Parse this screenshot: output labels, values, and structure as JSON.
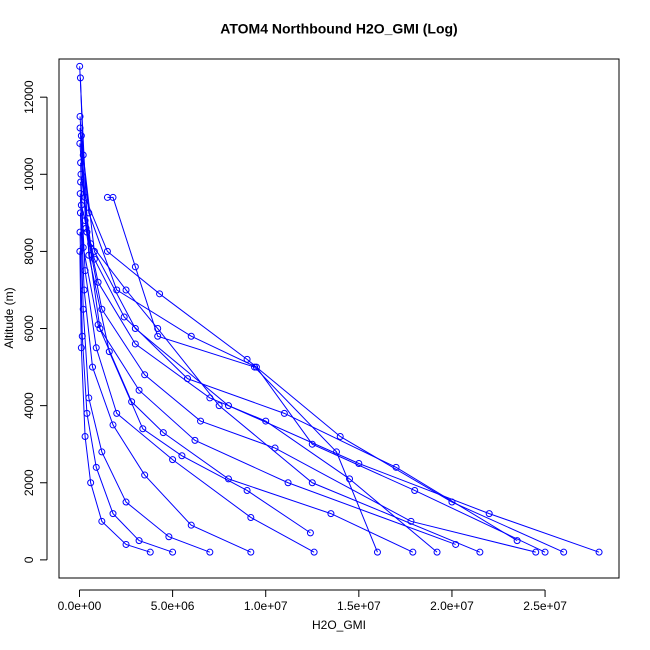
{
  "chart_data": {
    "type": "line",
    "title": "ATOM4 Northbound H2O_GMI (Log)",
    "x_label": "H2O_GMI",
    "y_label": "Altitude (m)",
    "color": "#0000ff",
    "markers": true,
    "xlim": [
      -1100000,
      28970000
    ],
    "ylim": [
      -470,
      12990
    ],
    "xticks": [
      {
        "value": 0,
        "label": "0.0e+00"
      },
      {
        "value": 5000000,
        "label": "5.0e+06"
      },
      {
        "value": 10000000,
        "label": "1.0e+07"
      },
      {
        "value": 15000000,
        "label": "1.5e+07"
      },
      {
        "value": 20000000,
        "label": "2.0e+07"
      },
      {
        "value": 25000000,
        "label": "2.5e+07"
      }
    ],
    "yticks": [
      0,
      2000,
      4000,
      6000,
      8000,
      10000,
      12000
    ],
    "series": [
      {
        "x": [
          50000,
          200000,
          800000,
          3000000,
          8000000,
          15000000,
          22000000,
          27900000
        ],
        "y": [
          12500,
          10500,
          8000,
          6000,
          4000,
          2500,
          1200,
          200
        ]
      },
      {
        "x": [
          30000,
          300000,
          1500000,
          4300000,
          9000000,
          14000000,
          20000000,
          26000000
        ],
        "y": [
          11500,
          9400,
          8000,
          6900,
          5200,
          3200,
          1500,
          200
        ]
      },
      {
        "x": [
          100000,
          500000,
          2000000,
          6000000,
          9500000,
          12500000,
          18000000,
          25000000
        ],
        "y": [
          11000,
          9000,
          7000,
          5800,
          5000,
          3000,
          1800,
          200
        ]
      },
      {
        "x": [
          20000,
          400000,
          1200000,
          3500000,
          6500000,
          10500000,
          17800000,
          24500000
        ],
        "y": [
          10800,
          8500,
          6500,
          4800,
          3600,
          2900,
          1000,
          200
        ]
      },
      {
        "x": [
          80000,
          600000,
          2500000,
          4200000,
          7500000,
          12500000,
          21500000
        ],
        "y": [
          10000,
          8200,
          7000,
          6000,
          4000,
          2000,
          200
        ]
      },
      {
        "x": [
          60000,
          300000,
          900000,
          2000000,
          5000000,
          9200000,
          12600000
        ],
        "y": [
          9800,
          7500,
          5500,
          3800,
          2600,
          1100,
          200
        ]
      },
      {
        "x": [
          40000,
          250000,
          700000,
          1800000,
          3500000,
          6000000,
          9200000
        ],
        "y": [
          9500,
          7000,
          5000,
          3500,
          2200,
          900,
          200
        ]
      },
      {
        "x": [
          50000,
          200000,
          500000,
          1200000,
          2500000,
          4800000,
          7000000
        ],
        "y": [
          9000,
          6500,
          4200,
          2800,
          1500,
          600,
          200
        ]
      },
      {
        "x": [
          30000,
          150000,
          400000,
          900000,
          1800000,
          3200000,
          5000000
        ],
        "y": [
          8500,
          5800,
          3800,
          2400,
          1200,
          500,
          200
        ]
      },
      {
        "x": [
          20000,
          100000,
          300000,
          600000,
          1200000,
          2500000,
          3800000
        ],
        "y": [
          8000,
          5500,
          3200,
          2000,
          1000,
          400,
          200
        ]
      },
      {
        "x": [
          300000,
          1000000,
          3000000,
          7000000,
          10000000,
          14500000,
          19200000
        ],
        "y": [
          8800,
          7200,
          5600,
          4200,
          3600,
          2100,
          200
        ]
      },
      {
        "x": [
          100000,
          800000,
          2400000,
          5800000,
          11000000,
          17000000,
          23500000
        ],
        "y": [
          9200,
          7800,
          6300,
          4700,
          3800,
          2400,
          500
        ]
      },
      {
        "x": [
          1500000,
          1800000,
          3000000,
          4200000,
          9400000,
          13800000,
          16000000
        ],
        "y": [
          9400,
          9400,
          7600,
          5800,
          5000,
          2800,
          200
        ]
      },
      {
        "x": [
          60000,
          200000,
          1000000,
          2800000,
          4500000,
          8000000,
          13500000,
          17900000
        ],
        "y": [
          10300,
          8100,
          6100,
          4100,
          3300,
          2100,
          1200,
          200
        ]
      },
      {
        "x": [
          30000,
          350000,
          1100000,
          3200000,
          6200000,
          11200000,
          20200000
        ],
        "y": [
          11200,
          8600,
          6000,
          4400,
          3100,
          2000,
          400
        ]
      },
      {
        "x": [
          10000,
          500000,
          1600000,
          3400000,
          5500000,
          9000000,
          12400000
        ],
        "y": [
          12800,
          7900,
          5400,
          3400,
          2700,
          1800,
          700
        ]
      }
    ]
  }
}
